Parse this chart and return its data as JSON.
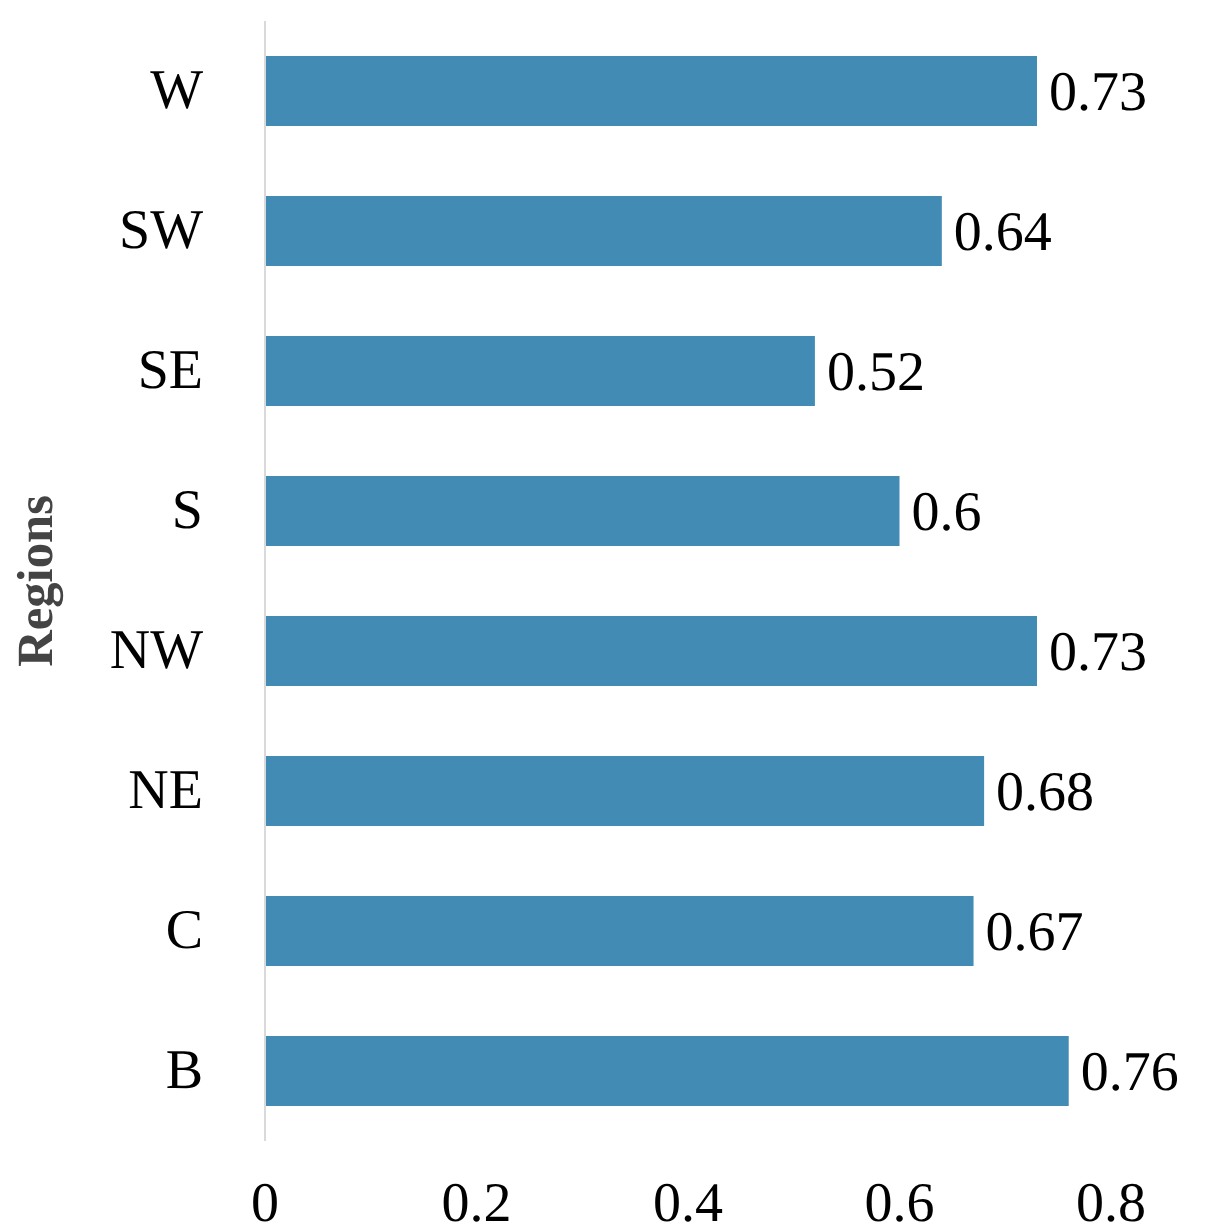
{
  "chart_data": {
    "type": "bar",
    "orientation": "horizontal",
    "ylabel": "Regions",
    "categories": [
      "W",
      "SW",
      "SE",
      "S",
      "NW",
      "NE",
      "C",
      "B"
    ],
    "values": [
      0.73,
      0.64,
      0.52,
      0.6,
      0.73,
      0.68,
      0.67,
      0.76
    ],
    "color": "#428bb5",
    "data_labels": true,
    "grid": false,
    "xlim": [
      0,
      0.8
    ],
    "xticks": [
      0,
      0.2,
      0.4,
      0.6,
      0.8
    ]
  }
}
